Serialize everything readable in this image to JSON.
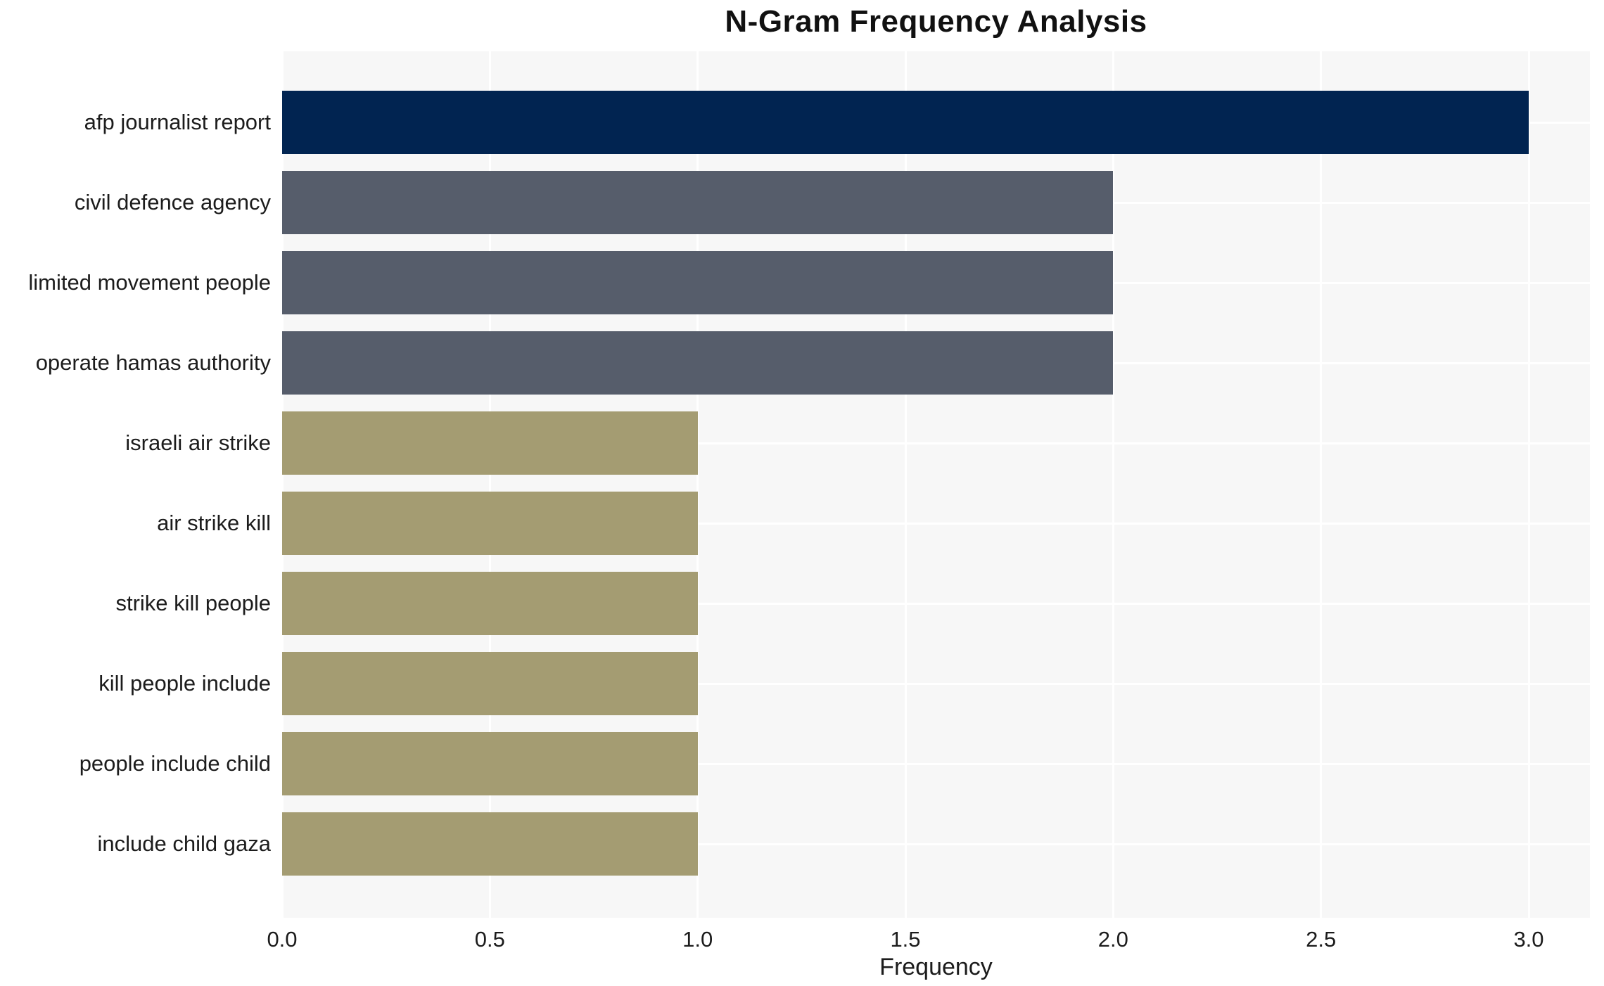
{
  "chart_data": {
    "type": "bar",
    "orientation": "horizontal",
    "title": "N-Gram Frequency Analysis",
    "xlabel": "Frequency",
    "ylabel": "",
    "categories": [
      "afp journalist report",
      "civil defence agency",
      "limited movement people",
      "operate hamas authority",
      "israeli air strike",
      "air strike kill",
      "strike kill people",
      "kill people include",
      "people include child",
      "include child gaza"
    ],
    "values": [
      3,
      2,
      2,
      2,
      1,
      1,
      1,
      1,
      1,
      1
    ],
    "bar_colors": [
      "#012451",
      "#565d6b",
      "#565d6b",
      "#565d6b",
      "#a49c72",
      "#a49c72",
      "#a49c72",
      "#a49c72",
      "#a49c72",
      "#a49c72"
    ],
    "x_ticks": [
      0.0,
      0.5,
      1.0,
      1.5,
      2.0,
      2.5,
      3.0
    ],
    "x_tick_labels": [
      "0.0",
      "0.5",
      "1.0",
      "1.5",
      "2.0",
      "2.5",
      "3.0"
    ],
    "xlim": [
      0,
      3.147
    ],
    "grid": true,
    "legend": false,
    "colors": {
      "plot_background": "#f7f7f7",
      "figure_background": "#ffffff",
      "gridline": "#ffffff",
      "text": "#1c1c1c",
      "title_text": "#111111"
    }
  }
}
